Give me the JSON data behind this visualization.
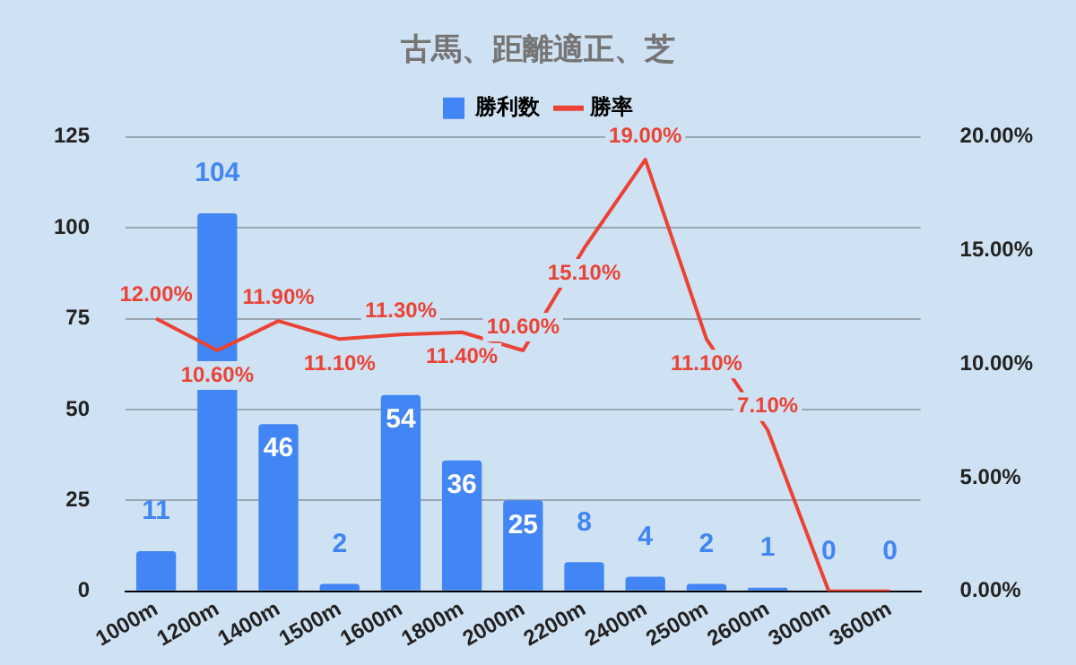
{
  "chart_data": {
    "type": "bar",
    "title": "古馬、距離適正、芝",
    "categories": [
      "1000m",
      "1200m",
      "1400m",
      "1500m",
      "1600m",
      "1800m",
      "2000m",
      "2200m",
      "2400m",
      "2500m",
      "2600m",
      "3000m",
      "3600m"
    ],
    "series": [
      {
        "name": "勝利数",
        "color": "#4285f4",
        "values": [
          11,
          104,
          46,
          2,
          54,
          36,
          25,
          8,
          4,
          2,
          1,
          0,
          0
        ]
      },
      {
        "name": "勝率",
        "type": "line",
        "axis": "y2",
        "color": "#ea4335",
        "marker": "none",
        "values": [
          12.0,
          10.6,
          11.9,
          11.1,
          11.3,
          11.4,
          10.6,
          15.1,
          19.0,
          11.1,
          7.1,
          0,
          0
        ],
        "value_labels": [
          "12.00%",
          "10.60%",
          "11.90%",
          "11.10%",
          "11.30%",
          "11.40%",
          "10.60%",
          "15.10%",
          "19.00%",
          "11.10%",
          "7.10%",
          null,
          null
        ]
      }
    ],
    "ylim": [
      0,
      125
    ],
    "yticks": [
      0,
      25,
      50,
      75,
      100,
      125
    ],
    "y2lim": [
      0,
      20
    ],
    "y2ticks": [
      {
        "value": 0,
        "label": "0.00%"
      },
      {
        "value": 5,
        "label": "5.00%"
      },
      {
        "value": 10,
        "label": "10.00%"
      },
      {
        "value": 15,
        "label": "15.00%"
      },
      {
        "value": 20,
        "label": "20.00%"
      }
    ],
    "grid": "y",
    "legend": "top",
    "data_labels": true
  }
}
